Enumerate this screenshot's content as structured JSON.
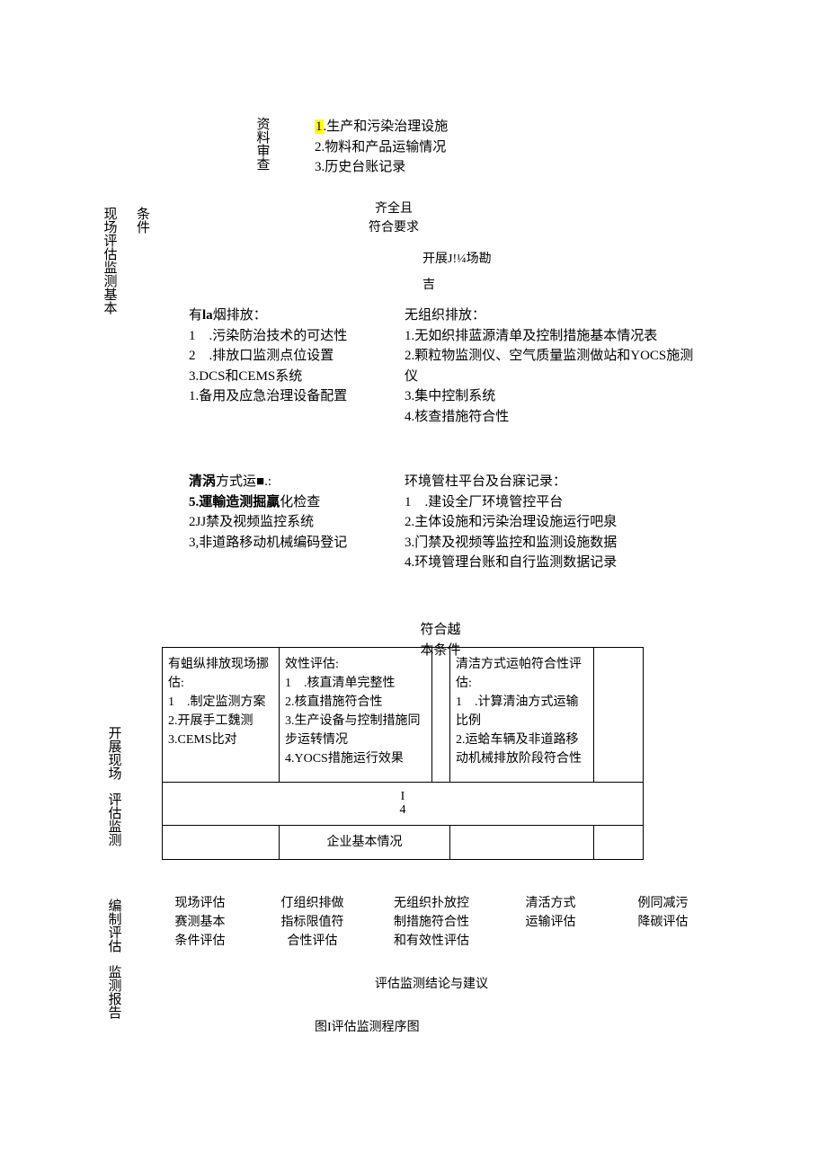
{
  "labels": {
    "l1a": "现场评估监测基本",
    "l1b": "条件",
    "l2a": "开展现场",
    "l2b": "评估监测",
    "l3a": "编制评估",
    "l3b": "监测报告",
    "docReview": "资料审查"
  },
  "top": {
    "hlNum": "1",
    "hlRest": ".生产和污染治理设施",
    "i2": "2.物料和产品运输情况",
    "i3": "3.历史台账记录",
    "pass1": "齐全且",
    "pass2": "符合要求",
    "kaizhan": "开展J!¼场勘",
    "ji": "吉"
  },
  "emitA": {
    "title_pre": "有",
    "title_b": "la",
    "title_post": "烟排放：",
    "l1": "1 .污染防治技术的可达性",
    "l2": "2 .排放口监测点位设置",
    "l3": "3.DCS和CEMS系统",
    "l4": "1.备用及应急治理设备配置"
  },
  "emitB": {
    "title": "无组织排放：",
    "l1": "1.无如织排蓝源清单及控制措施基本情况表",
    "l2": "2.颗粒物监测仪、空气质量监测做站和YOCS施测仪",
    "l3": "3.集中控制系统",
    "l4": "4.核查措施符合性"
  },
  "cleanA": {
    "title_b": "清涡",
    "title_post": "方式运■.:",
    "l1b": "5.運輸造测掘贏",
    "l1post": "化检查",
    "l2": "2JJ禁及视频监控系统",
    "l3": "3,非道路移动机械编码登记"
  },
  "envB": {
    "title": "环境管柱平台及台寐记录：",
    "l1": "1 .建设全厂环境管控平台",
    "l2": "2.主体设施和污染治理设施运行吧泉",
    "l3": "3.门禁及视频等监控和监测设施数据",
    "l4": "4.环境管理台账和自行监测数据记录"
  },
  "cond": {
    "a": "符合越",
    "b": "本条件"
  },
  "tblRow1": [
    "有蛆纵排放现场挪估:\n1 .制定监测方案\n2.开展手工魏测\n3.CEMS比对",
    "效性评估:\n1 .核直清单完整性\n2.核直措施符合性\n3.生产设备与控制措施同步运转情况\n4.YOCS措施运行效果",
    "清洁方式运帕符合性评估:\n1 .计算清油方式运输比例\n2.运蛤车辆及非道路移动机械排放阶段符合性"
  ],
  "tblRow2": "I\n4",
  "tblRow3": "企业基本情况",
  "cols": [
    "现场评估\n赛测基本\n条件评估",
    "仃组织排做\n指标限值符\n合性评估",
    "无组织扑放控\n制措施符合性\n和有效性评估",
    "清活方式\n运输评估",
    "例同减污\n降碳评估"
  ],
  "concl": "评估监测结论与建议",
  "caption": "图I评估监测程序图",
  "widths": {
    "c1": 130,
    "c2": 170,
    "c3": 20,
    "c4": 160,
    "c5": 55
  }
}
